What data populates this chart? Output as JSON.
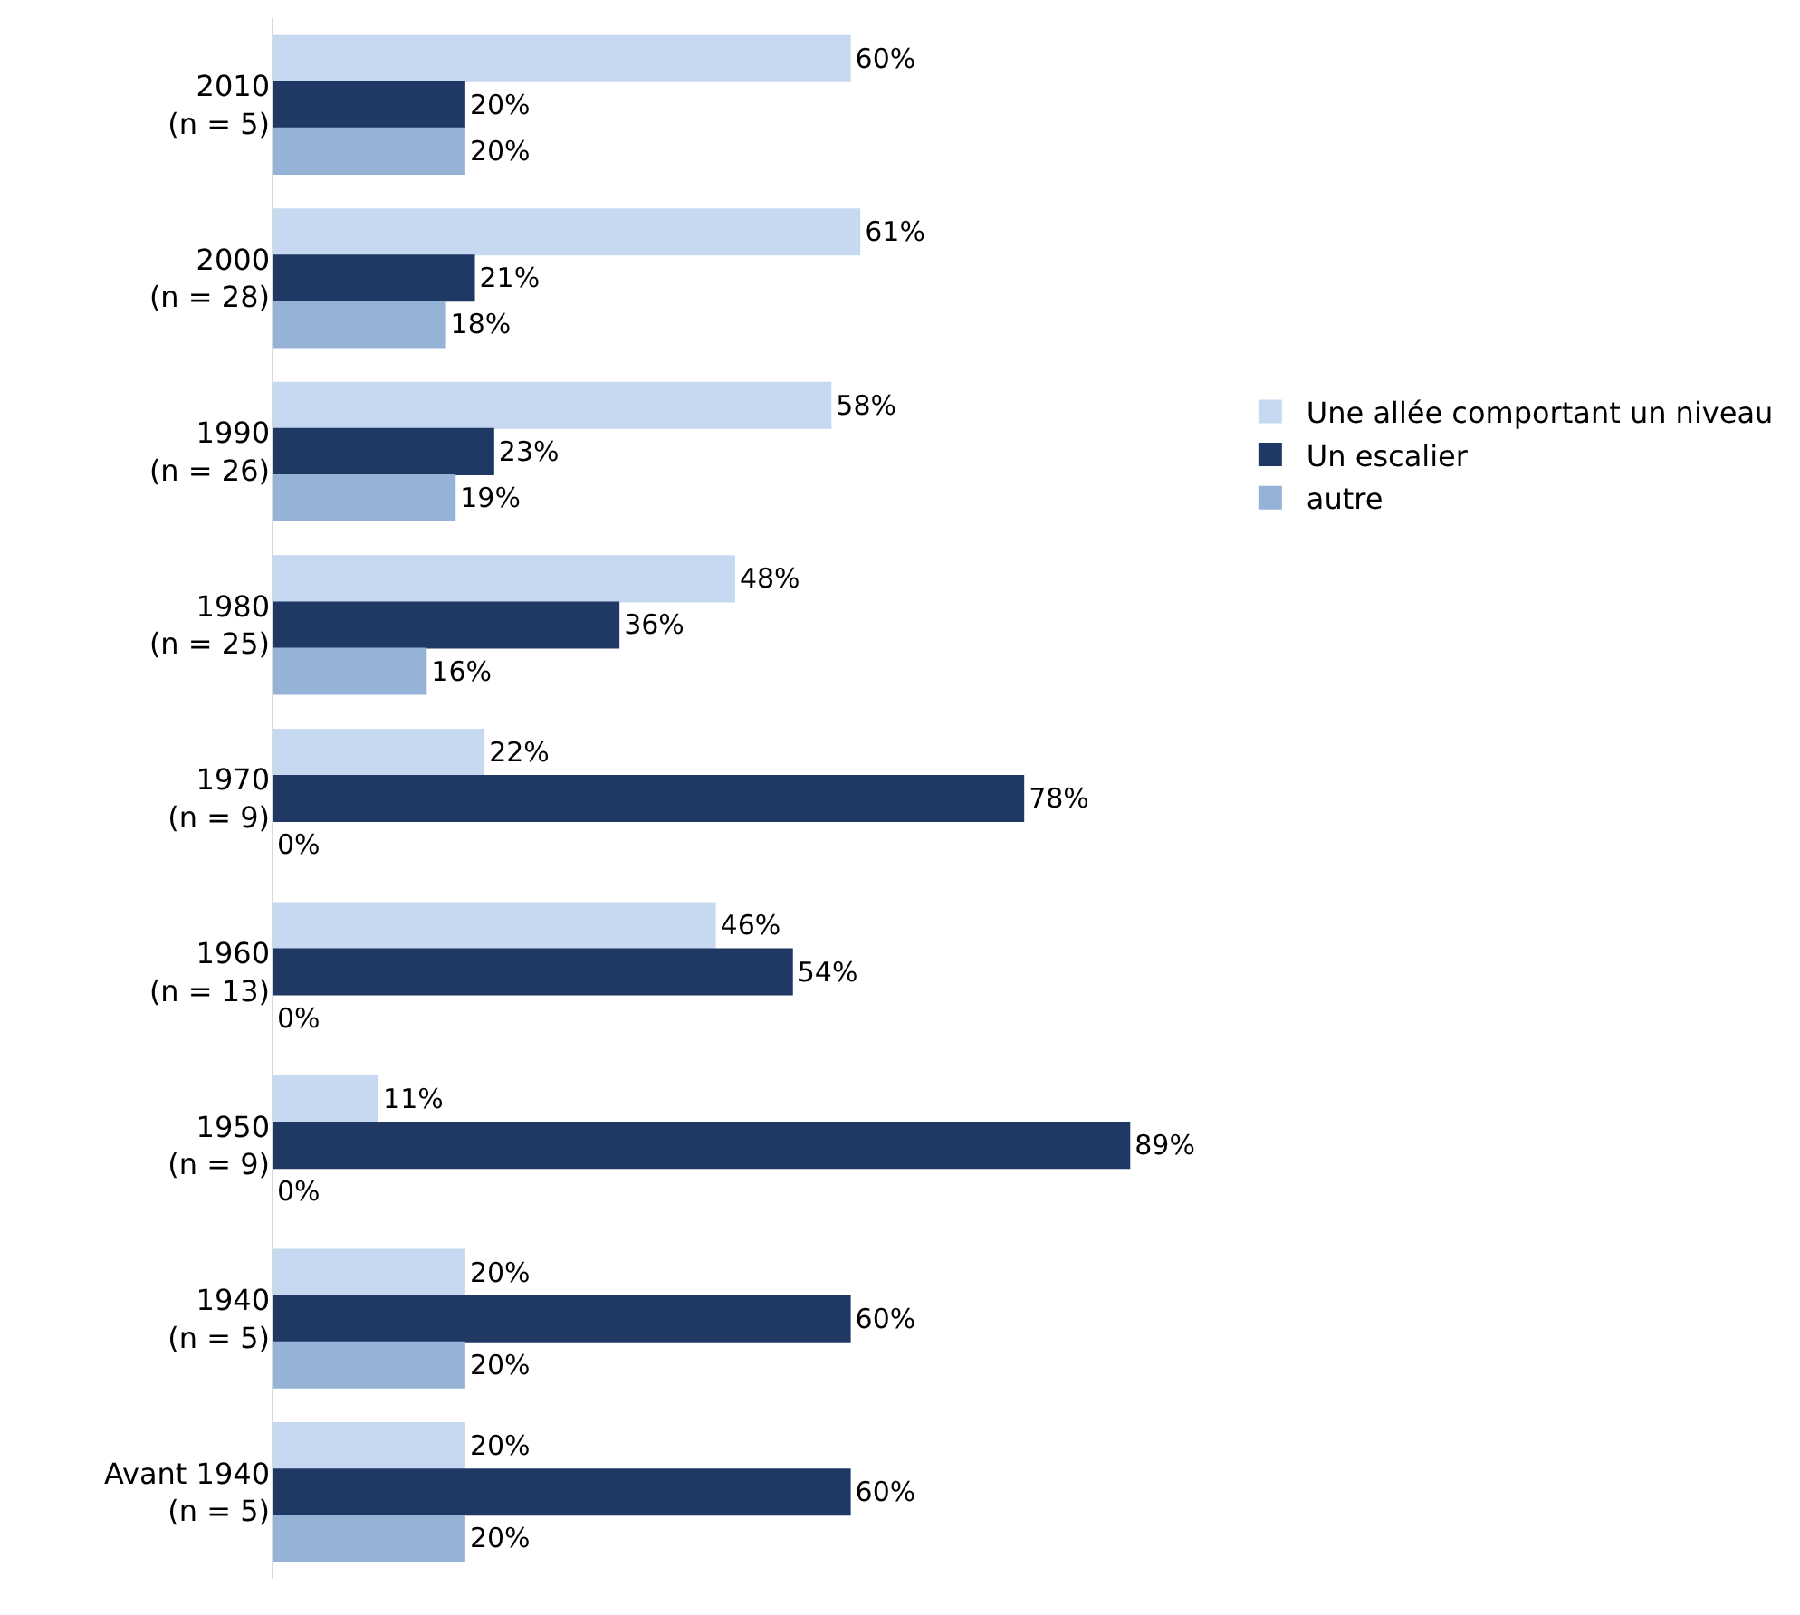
{
  "chart_data": {
    "type": "bar",
    "orientation": "horizontal",
    "legend": "right",
    "tick_labels": "y",
    "categories": [
      "2010\n(n = 5)",
      "2000\n(n = 28)",
      "1990\n(n = 26)",
      "1980\n(n = 25)",
      "1970\n(n = 9)",
      "1960\n(n = 13)",
      "1950\n(n = 9)",
      "1940\n(n = 5)",
      "Avant 1940\n(n = 5)"
    ],
    "series": [
      {
        "name": "Une allée comportant un niveau",
        "color": "#c6d9f1",
        "values": [
          60,
          61,
          58,
          48,
          22,
          46,
          11,
          20,
          20
        ],
        "value_labels": [
          "60%",
          "61%",
          "58%",
          "48%",
          "22%",
          "46%",
          "11%",
          "20%",
          "20%"
        ]
      },
      {
        "name": "Un escalier",
        "color": "#1f3864",
        "values": [
          20,
          21,
          23,
          36,
          78,
          54,
          89,
          60,
          60
        ],
        "value_labels": [
          "20%",
          "21%",
          "23%",
          "36%",
          "78%",
          "54%",
          "89%",
          "60%",
          "60%"
        ]
      },
      {
        "name": "autre",
        "color": "#95b3d7",
        "values": [
          20,
          18,
          19,
          16,
          0,
          0,
          0,
          20,
          20
        ],
        "value_labels": [
          "20%",
          "18%",
          "19%",
          "16%",
          "0%",
          "0%",
          "0%",
          "20%",
          "20%"
        ]
      }
    ]
  }
}
